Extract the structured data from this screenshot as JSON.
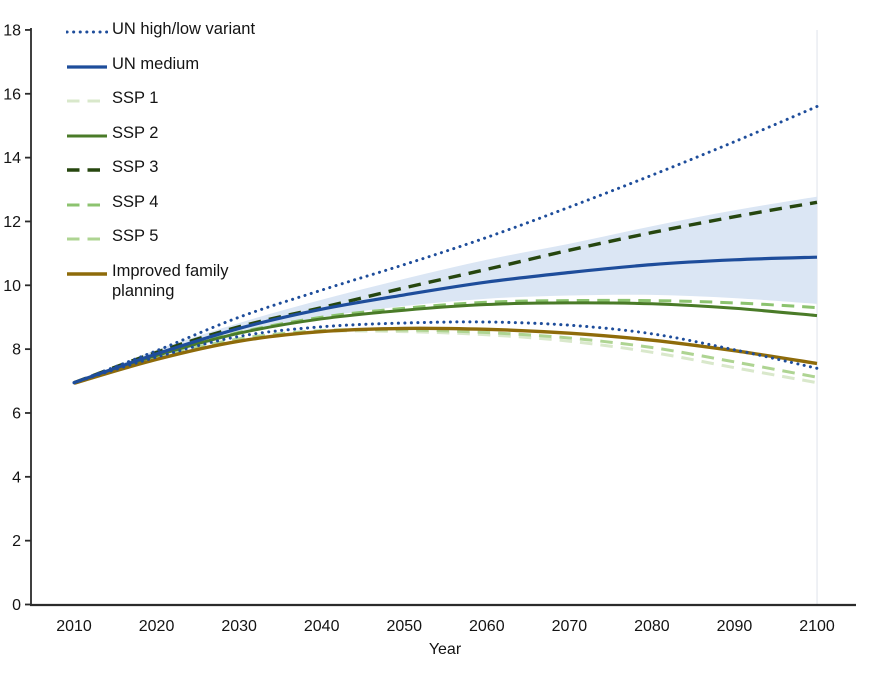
{
  "chart_data": {
    "type": "line",
    "title": "",
    "xlabel": "Year",
    "ylabel": "",
    "xlim": [
      2005,
      2105
    ],
    "ylim": [
      0,
      18
    ],
    "xticks": [
      2010,
      2020,
      2030,
      2040,
      2050,
      2060,
      2070,
      2080,
      2090,
      2100
    ],
    "yticks": [
      0,
      2,
      4,
      6,
      8,
      10,
      12,
      14,
      16,
      18
    ],
    "grid": false,
    "legend_position": "upper-left-inside",
    "axis_color": "#2b2b2b",
    "band": {
      "name": "shaded-uncertainty-band",
      "color": "#dbe6f4",
      "upper": [
        [
          2014,
          7.35
        ],
        [
          2020,
          7.98
        ],
        [
          2030,
          8.82
        ],
        [
          2040,
          9.55
        ],
        [
          2050,
          10.2
        ],
        [
          2060,
          10.8
        ],
        [
          2070,
          11.3
        ],
        [
          2080,
          11.85
        ],
        [
          2090,
          12.35
        ],
        [
          2100,
          12.78
        ]
      ],
      "lower": [
        [
          2014,
          7.3
        ],
        [
          2020,
          7.72
        ],
        [
          2030,
          8.45
        ],
        [
          2040,
          9.0
        ],
        [
          2050,
          9.35
        ],
        [
          2060,
          9.58
        ],
        [
          2070,
          9.68
        ],
        [
          2080,
          9.7
        ],
        [
          2090,
          9.6
        ],
        [
          2100,
          9.42
        ]
      ]
    },
    "series": [
      {
        "label": "UN high/low variant",
        "color": "#1e4d9b",
        "style": "dotted",
        "width": 3,
        "curves": {
          "high": [
            [
              2010,
              6.95
            ],
            [
              2020,
              7.95
            ],
            [
              2030,
              9.0
            ],
            [
              2040,
              9.85
            ],
            [
              2050,
              10.65
            ],
            [
              2060,
              11.5
            ],
            [
              2070,
              12.45
            ],
            [
              2080,
              13.45
            ],
            [
              2090,
              14.5
            ],
            [
              2100,
              15.6
            ]
          ],
          "low": [
            [
              2010,
              6.95
            ],
            [
              2020,
              7.75
            ],
            [
              2030,
              8.4
            ],
            [
              2040,
              8.7
            ],
            [
              2050,
              8.82
            ],
            [
              2060,
              8.85
            ],
            [
              2070,
              8.75
            ],
            [
              2080,
              8.48
            ],
            [
              2090,
              7.98
            ],
            [
              2100,
              7.4
            ]
          ]
        }
      },
      {
        "label": "UN medium",
        "color": "#1e4d9b",
        "style": "solid",
        "width": 3.2,
        "curves": {
          "main": [
            [
              2010,
              6.95
            ],
            [
              2020,
              7.85
            ],
            [
              2030,
              8.65
            ],
            [
              2040,
              9.25
            ],
            [
              2050,
              9.7
            ],
            [
              2060,
              10.1
            ],
            [
              2070,
              10.4
            ],
            [
              2080,
              10.65
            ],
            [
              2090,
              10.8
            ],
            [
              2100,
              10.88
            ]
          ]
        }
      },
      {
        "label": "SSP 1",
        "color": "#d9e8cb",
        "style": "dashed",
        "width": 3,
        "curves": {
          "main": [
            [
              2010,
              6.95
            ],
            [
              2020,
              7.72
            ],
            [
              2030,
              8.3
            ],
            [
              2040,
              8.55
            ],
            [
              2050,
              8.55
            ],
            [
              2060,
              8.45
            ],
            [
              2070,
              8.25
            ],
            [
              2080,
              7.9
            ],
            [
              2090,
              7.42
            ],
            [
              2100,
              6.95
            ]
          ]
        }
      },
      {
        "label": "SSP 2",
        "color": "#4a7b28",
        "style": "solid",
        "width": 3,
        "curves": {
          "main": [
            [
              2010,
              6.95
            ],
            [
              2020,
              7.8
            ],
            [
              2030,
              8.5
            ],
            [
              2040,
              8.95
            ],
            [
              2050,
              9.22
            ],
            [
              2060,
              9.4
            ],
            [
              2070,
              9.45
            ],
            [
              2080,
              9.42
            ],
            [
              2090,
              9.28
            ],
            [
              2100,
              9.05
            ]
          ]
        }
      },
      {
        "label": "SSP 3",
        "color": "#26460f",
        "style": "dashed",
        "width": 3.4,
        "curves": {
          "main": [
            [
              2010,
              6.95
            ],
            [
              2020,
              7.9
            ],
            [
              2030,
              8.7
            ],
            [
              2040,
              9.3
            ],
            [
              2050,
              9.92
            ],
            [
              2060,
              10.5
            ],
            [
              2070,
              11.1
            ],
            [
              2080,
              11.65
            ],
            [
              2090,
              12.15
            ],
            [
              2100,
              12.6
            ]
          ]
        }
      },
      {
        "label": "SSP 4",
        "color": "#8cc36f",
        "style": "dashed",
        "width": 3,
        "curves": {
          "main": [
            [
              2010,
              6.95
            ],
            [
              2020,
              7.82
            ],
            [
              2030,
              8.52
            ],
            [
              2040,
              9.0
            ],
            [
              2050,
              9.28
            ],
            [
              2060,
              9.47
            ],
            [
              2070,
              9.52
            ],
            [
              2080,
              9.52
            ],
            [
              2090,
              9.45
            ],
            [
              2100,
              9.3
            ]
          ]
        }
      },
      {
        "label": "SSP 5",
        "color": "#aed492",
        "style": "dashed",
        "width": 3,
        "curves": {
          "main": [
            [
              2010,
              6.95
            ],
            [
              2020,
              7.74
            ],
            [
              2030,
              8.32
            ],
            [
              2040,
              8.58
            ],
            [
              2050,
              8.6
            ],
            [
              2060,
              8.52
            ],
            [
              2070,
              8.35
            ],
            [
              2080,
              8.05
            ],
            [
              2090,
              7.6
            ],
            [
              2100,
              7.12
            ]
          ]
        }
      },
      {
        "label": "Improved family planning",
        "color": "#8e6b0a",
        "style": "solid",
        "width": 3.4,
        "curves": {
          "main": [
            [
              2010,
              6.93
            ],
            [
              2020,
              7.68
            ],
            [
              2030,
              8.25
            ],
            [
              2040,
              8.55
            ],
            [
              2050,
              8.65
            ],
            [
              2060,
              8.62
            ],
            [
              2070,
              8.5
            ],
            [
              2080,
              8.28
            ],
            [
              2090,
              7.95
            ],
            [
              2100,
              7.55
            ]
          ]
        }
      }
    ]
  }
}
